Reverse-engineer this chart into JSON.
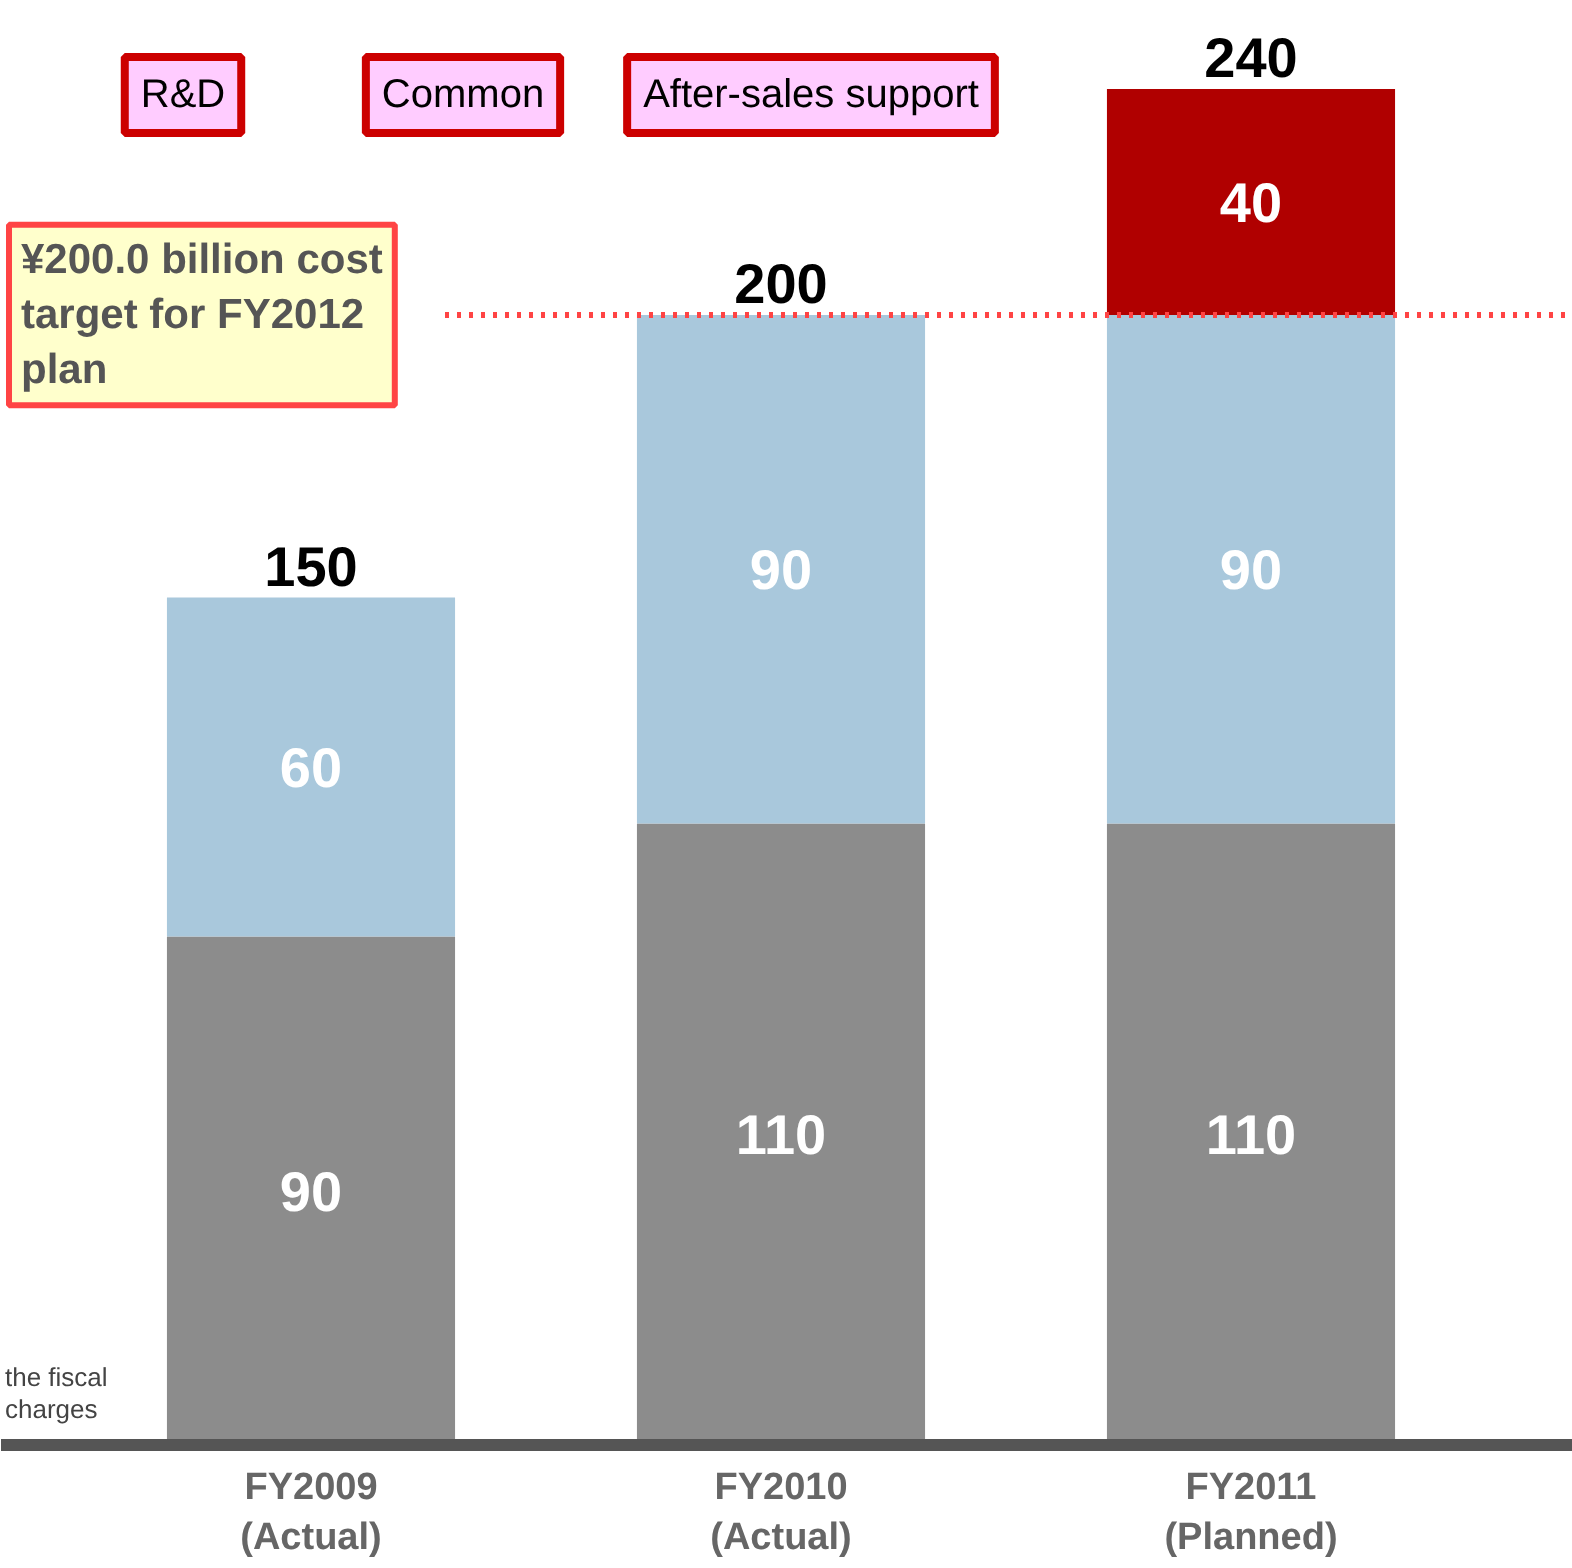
{
  "chart_data": {
    "type": "bar",
    "stacked": true,
    "categories": [
      "FY2009\n(Actual)",
      "FY2010\n(Actual)",
      "FY2011\n(Planned)"
    ],
    "series": [
      {
        "color": "#8c8c8c",
        "values": [
          90,
          110,
          110
        ],
        "value_labels": [
          "90",
          "110",
          "110"
        ]
      },
      {
        "color": "#a9c8dc",
        "values": [
          60,
          90,
          90
        ],
        "value_labels": [
          "60",
          "90",
          "90"
        ]
      },
      {
        "color": "#b00000",
        "values": [
          null,
          null,
          40
        ],
        "value_labels": [
          null,
          null,
          "40"
        ]
      }
    ],
    "totals": [
      "150",
      "200",
      "240"
    ],
    "ref_lines": [
      {
        "axis": "y",
        "value": 200,
        "color": "#ff4444",
        "line_style": "dotted",
        "label": "¥200.0 billion cost\ntarget for FY2012\nplan"
      }
    ],
    "annotations": [
      "R&D",
      "Common",
      "After-sales support",
      "the fiscal",
      "charges"
    ]
  }
}
